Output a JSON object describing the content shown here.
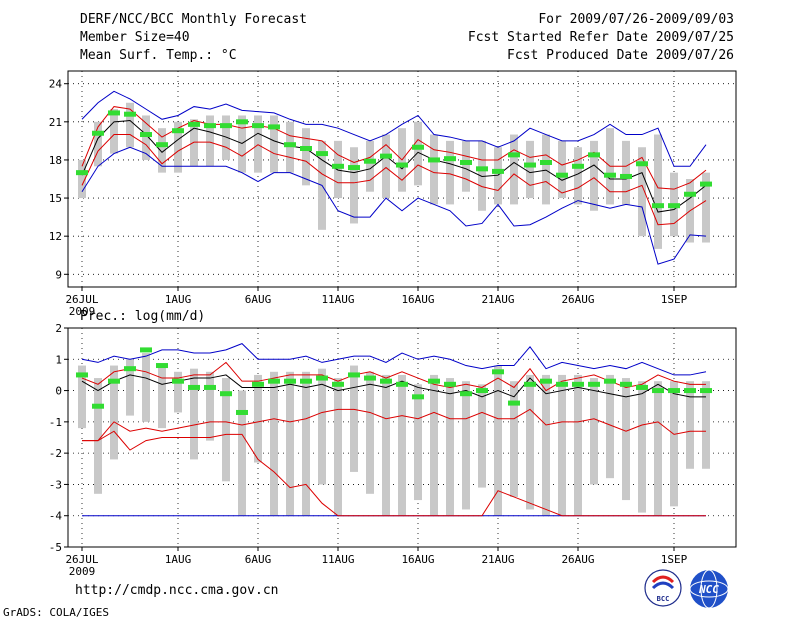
{
  "header": {
    "title": "DERF/NCC/BCC Monthly Forecast",
    "member_size": "Member Size=40",
    "variable": "Mean Surf. Temp.: °C",
    "forecast_period": "For 2009/07/26-2009/09/03",
    "start_date": "Fcst Started Refer Date 2009/07/25",
    "produced_date": "Fcst Produced Date 2009/07/26"
  },
  "footer": {
    "url": "http://cmdp.ncc.cma.gov.cn",
    "credit": "GrADS: COLA/IGES",
    "logo_bcc": "BCC",
    "logo_ncc": "NCC"
  },
  "colors": {
    "box": "#c8c8c8",
    "ensemble_max_min": "#0000c8",
    "spread": "#dc0000",
    "mean": "#000000",
    "median": "#32dc32"
  },
  "chart_data": [
    {
      "type": "line",
      "name": "temperature",
      "title": "",
      "xlabel": "",
      "ylabel": "Mean Surf. Temp.: °C",
      "xlim": [
        0,
        40
      ],
      "ylim": [
        8,
        25
      ],
      "yticks": [
        9,
        12,
        15,
        18,
        21,
        24
      ],
      "xticks": [
        {
          "x": 0,
          "label": "26JUL",
          "sublabel": "2009"
        },
        {
          "x": 6,
          "label": "1AUG"
        },
        {
          "x": 11,
          "label": "6AUG"
        },
        {
          "x": 16,
          "label": "11AUG"
        },
        {
          "x": 21,
          "label": "16AUG"
        },
        {
          "x": 26,
          "label": "21AUG"
        },
        {
          "x": 31,
          "label": "26AUG"
        },
        {
          "x": 37,
          "label": "1SEP"
        }
      ],
      "days": [
        0,
        1,
        2,
        3,
        4,
        5,
        6,
        7,
        8,
        9,
        10,
        11,
        12,
        13,
        14,
        15,
        16,
        17,
        18,
        19,
        20,
        21,
        22,
        23,
        24,
        25,
        26,
        27,
        28,
        29,
        30,
        31,
        32,
        33,
        34,
        35,
        36,
        37,
        38,
        39
      ],
      "series": [
        {
          "name": "max",
          "values": [
            21.2,
            22.5,
            23.4,
            22.8,
            22.0,
            21.2,
            21.5,
            22.2,
            22.0,
            22.4,
            21.9,
            21.8,
            21.7,
            21.2,
            20.8,
            20.8,
            20.5,
            20.0,
            19.5,
            20.0,
            20.8,
            21.5,
            20.0,
            19.8,
            19.5,
            19.5,
            19.0,
            19.5,
            20.5,
            20.0,
            19.5,
            19.5,
            20.0,
            20.8,
            20.0,
            20.0,
            20.5,
            17.5,
            17.5,
            19.2
          ]
        },
        {
          "name": "min",
          "values": [
            15.5,
            17.5,
            18.5,
            19.0,
            18.5,
            17.5,
            17.5,
            17.5,
            17.5,
            17.5,
            17.0,
            16.3,
            17.0,
            17.0,
            16.5,
            16.0,
            14.0,
            13.5,
            13.5,
            15.0,
            14.0,
            15.0,
            14.5,
            14.0,
            12.8,
            13.0,
            14.5,
            12.8,
            12.9,
            13.5,
            14.2,
            14.8,
            14.5,
            14.2,
            14.5,
            14.3,
            9.8,
            10.2,
            12.1,
            12.0
          ]
        },
        {
          "name": "upper",
          "values": [
            17.5,
            20.6,
            22.2,
            22.0,
            20.9,
            19.8,
            20.5,
            21.1,
            20.8,
            20.8,
            20.5,
            20.7,
            20.5,
            19.9,
            19.7,
            19.5,
            18.4,
            17.8,
            18.2,
            19.2,
            18.0,
            19.6,
            18.8,
            18.6,
            18.3,
            18.0,
            18.0,
            18.8,
            18.2,
            18.4,
            17.6,
            18.0,
            18.6,
            17.5,
            17.5,
            18.2,
            15.8,
            15.7,
            16.2,
            17.2
          ]
        },
        {
          "name": "mean",
          "values": [
            16.8,
            19.7,
            21.0,
            21.1,
            20.0,
            18.6,
            19.6,
            20.5,
            20.2,
            19.8,
            19.3,
            20.1,
            19.5,
            19.1,
            18.9,
            18.0,
            17.2,
            17.0,
            17.3,
            18.3,
            17.3,
            18.6,
            18.0,
            17.7,
            17.3,
            16.7,
            16.8,
            17.8,
            17.0,
            17.2,
            16.4,
            16.9,
            17.6,
            16.5,
            16.5,
            17.0,
            13.9,
            14.1,
            15.0,
            16.0
          ]
        },
        {
          "name": "lower",
          "values": [
            16.0,
            18.7,
            20.0,
            20.0,
            19.2,
            17.7,
            18.7,
            19.4,
            19.4,
            19.0,
            18.3,
            19.2,
            18.5,
            18.2,
            17.9,
            16.9,
            16.2,
            16.2,
            16.4,
            17.4,
            16.4,
            17.6,
            17.0,
            16.9,
            16.5,
            15.9,
            15.6,
            16.9,
            16.0,
            16.3,
            15.4,
            15.8,
            16.6,
            15.5,
            15.5,
            16.0,
            12.9,
            13.0,
            14.0,
            14.8
          ]
        },
        {
          "name": "median",
          "values": [
            17.0,
            20.1,
            21.7,
            21.6,
            20.0,
            19.2,
            20.3,
            20.8,
            20.7,
            20.7,
            21.0,
            20.7,
            20.6,
            19.2,
            18.9,
            18.5,
            17.5,
            17.4,
            17.9,
            18.3,
            17.6,
            19.0,
            18.0,
            18.1,
            17.8,
            17.3,
            17.1,
            18.4,
            17.6,
            17.8,
            16.8,
            17.5,
            18.4,
            16.8,
            16.7,
            17.7,
            14.4,
            14.4,
            15.3,
            16.1
          ]
        },
        {
          "name": "box_high",
          "values": [
            18.0,
            21.0,
            22.0,
            22.5,
            21.5,
            20.5,
            21.0,
            21.2,
            21.5,
            21.5,
            21.5,
            21.5,
            21.5,
            21.0,
            20.5,
            19.5,
            19.5,
            19.0,
            19.5,
            20.0,
            20.5,
            21.0,
            20.0,
            19.5,
            19.5,
            19.5,
            19.0,
            20.0,
            19.5,
            20.0,
            19.5,
            19.0,
            19.5,
            20.5,
            19.5,
            19.0,
            20.0,
            17.0,
            16.5,
            17.0
          ]
        },
        {
          "name": "box_low",
          "values": [
            15.0,
            17.5,
            18.5,
            19.0,
            18.0,
            17.0,
            17.0,
            17.5,
            17.5,
            18.0,
            17.0,
            17.0,
            17.0,
            17.0,
            16.0,
            12.5,
            15.0,
            13.0,
            15.5,
            15.0,
            15.5,
            16.0,
            14.5,
            14.5,
            15.5,
            14.0,
            14.5,
            14.5,
            15.0,
            14.5,
            15.0,
            14.5,
            14.0,
            14.5,
            14.5,
            12.0,
            11.0,
            12.0,
            11.5,
            11.5
          ]
        }
      ]
    },
    {
      "type": "line",
      "name": "precipitation",
      "title": "Prec.: log(mm/d)",
      "xlabel": "",
      "ylabel": "Prec.: log(mm/d)",
      "xlim": [
        0,
        40
      ],
      "ylim": [
        -5,
        2
      ],
      "yticks": [
        -5,
        -4,
        -3,
        -2,
        -1,
        0,
        1,
        2
      ],
      "xticks": [
        {
          "x": 0,
          "label": "26JUL",
          "sublabel": "2009"
        },
        {
          "x": 6,
          "label": "1AUG"
        },
        {
          "x": 11,
          "label": "6AUG"
        },
        {
          "x": 16,
          "label": "11AUG"
        },
        {
          "x": 21,
          "label": "16AUG"
        },
        {
          "x": 26,
          "label": "21AUG"
        },
        {
          "x": 31,
          "label": "26AUG"
        },
        {
          "x": 37,
          "label": "1SEP"
        }
      ],
      "days": [
        0,
        1,
        2,
        3,
        4,
        5,
        6,
        7,
        8,
        9,
        10,
        11,
        12,
        13,
        14,
        15,
        16,
        17,
        18,
        19,
        20,
        21,
        22,
        23,
        24,
        25,
        26,
        27,
        28,
        29,
        30,
        31,
        32,
        33,
        34,
        35,
        36,
        37,
        38,
        39
      ],
      "series": [
        {
          "name": "max",
          "values": [
            1.0,
            0.9,
            1.1,
            1.0,
            1.1,
            1.3,
            1.3,
            1.2,
            1.2,
            1.3,
            1.5,
            1.0,
            1.0,
            1.0,
            1.1,
            0.9,
            1.0,
            1.1,
            1.1,
            0.9,
            1.2,
            1.0,
            1.1,
            1.0,
            0.8,
            0.7,
            0.8,
            0.8,
            1.4,
            0.7,
            0.9,
            0.8,
            0.7,
            0.8,
            0.7,
            0.9,
            0.7,
            0.5,
            0.5,
            0.6
          ]
        },
        {
          "name": "min",
          "values": [
            -4.0,
            -4.0,
            -4.0,
            -4.0,
            -4.0,
            -4.0,
            -4.0,
            -4.0,
            -4.0,
            -4.0,
            -4.0,
            -4.0,
            -4.0,
            -4.0,
            -4.0,
            -4.0,
            -4.0,
            -4.0,
            -4.0,
            -4.0,
            -4.0,
            -4.0,
            -4.0,
            -4.0,
            -4.0,
            -4.0,
            -4.0,
            -4.0,
            -4.0,
            -4.0,
            -4.0,
            -4.0,
            -4.0,
            -4.0,
            -4.0,
            -4.0,
            -4.0,
            -4.0,
            -4.0,
            -4.0
          ]
        },
        {
          "name": "upper",
          "values": [
            0.4,
            0.2,
            0.6,
            0.7,
            0.6,
            0.4,
            0.4,
            0.5,
            0.5,
            0.9,
            0.3,
            0.3,
            0.4,
            0.5,
            0.5,
            0.5,
            0.3,
            0.5,
            0.6,
            0.4,
            0.6,
            0.4,
            0.2,
            0.1,
            0.2,
            0.1,
            0.4,
            0.1,
            0.7,
            0.0,
            0.3,
            0.4,
            0.5,
            0.3,
            0.1,
            0.2,
            0.5,
            0.3,
            0.2,
            0.2
          ]
        },
        {
          "name": "mean",
          "values": [
            0.3,
            0.0,
            0.3,
            0.5,
            0.4,
            0.2,
            0.3,
            0.4,
            0.4,
            0.5,
            0.1,
            0.1,
            0.1,
            0.2,
            0.1,
            0.2,
            0.0,
            0.1,
            0.2,
            0.1,
            0.3,
            0.1,
            0.0,
            -0.1,
            0.0,
            -0.2,
            0.0,
            -0.2,
            0.4,
            -0.1,
            0.0,
            0.1,
            0.0,
            -0.1,
            -0.2,
            -0.1,
            0.2,
            -0.1,
            -0.2,
            -0.2
          ]
        },
        {
          "name": "lower",
          "values": [
            -1.6,
            -1.6,
            -1.0,
            -1.3,
            -1.2,
            -1.3,
            -1.2,
            -1.1,
            -1.0,
            -1.0,
            -1.1,
            -1.0,
            -0.9,
            -1.0,
            -0.9,
            -0.7,
            -0.6,
            -0.6,
            -0.7,
            -0.9,
            -0.8,
            -0.9,
            -0.7,
            -0.9,
            -0.9,
            -0.7,
            -0.9,
            -0.9,
            -0.6,
            -1.1,
            -1.0,
            -1.0,
            -0.9,
            -1.1,
            -1.3,
            -1.1,
            -1.0,
            -1.4,
            -1.3,
            -1.3
          ]
        },
        {
          "name": "low_line",
          "values": [
            -1.6,
            -1.6,
            -1.3,
            -1.9,
            -1.6,
            -1.5,
            -1.5,
            -1.5,
            -1.5,
            -1.4,
            -1.4,
            -2.2,
            -2.6,
            -3.1,
            -3.0,
            -3.6,
            -4.0,
            -4.0,
            -4.0,
            -4.0,
            -4.0,
            -4.0,
            -4.0,
            -4.0,
            -4.0,
            -4.0,
            -3.2,
            -3.4,
            -3.6,
            -3.8,
            -4.0,
            -4.0,
            -4.0,
            -4.0,
            -4.0,
            -4.0,
            -4.0,
            -4.0,
            -4.0,
            -4.0
          ]
        },
        {
          "name": "median",
          "values": [
            0.5,
            -0.5,
            0.3,
            0.7,
            1.3,
            0.8,
            0.3,
            0.1,
            0.1,
            -0.1,
            -0.7,
            0.2,
            0.3,
            0.3,
            0.3,
            0.4,
            0.2,
            0.5,
            0.4,
            0.3,
            0.2,
            -0.2,
            0.3,
            0.2,
            -0.1,
            0.0,
            0.6,
            -0.4,
            0.2,
            0.3,
            0.2,
            0.2,
            0.2,
            0.3,
            0.2,
            0.1,
            0.0,
            0.0,
            0.0,
            0.0
          ]
        },
        {
          "name": "box_high",
          "values": [
            0.8,
            0.4,
            0.8,
            1.0,
            1.2,
            0.8,
            0.6,
            0.7,
            0.6,
            0.4,
            0.0,
            0.5,
            0.6,
            0.6,
            0.6,
            0.7,
            0.4,
            0.8,
            0.6,
            0.5,
            0.5,
            0.2,
            0.5,
            0.4,
            0.3,
            0.2,
            0.8,
            0.3,
            0.5,
            0.5,
            0.5,
            0.5,
            0.4,
            0.5,
            0.4,
            0.3,
            0.3,
            0.3,
            0.3,
            0.3
          ]
        },
        {
          "name": "box_low",
          "values": [
            -1.2,
            -3.3,
            -2.2,
            -0.8,
            -1.0,
            -1.2,
            -0.7,
            -2.2,
            -1.6,
            -2.9,
            -4.0,
            -2.3,
            -4.0,
            -4.0,
            -4.0,
            -3.0,
            -4.0,
            -2.6,
            -3.3,
            -4.0,
            -4.0,
            -3.5,
            -4.0,
            -4.0,
            -3.8,
            -3.1,
            -4.0,
            -3.4,
            -3.8,
            -4.0,
            -4.0,
            -4.0,
            -3.0,
            -2.8,
            -3.5,
            -3.9,
            -4.0,
            -3.7,
            -2.5,
            -2.5
          ]
        }
      ]
    }
  ]
}
